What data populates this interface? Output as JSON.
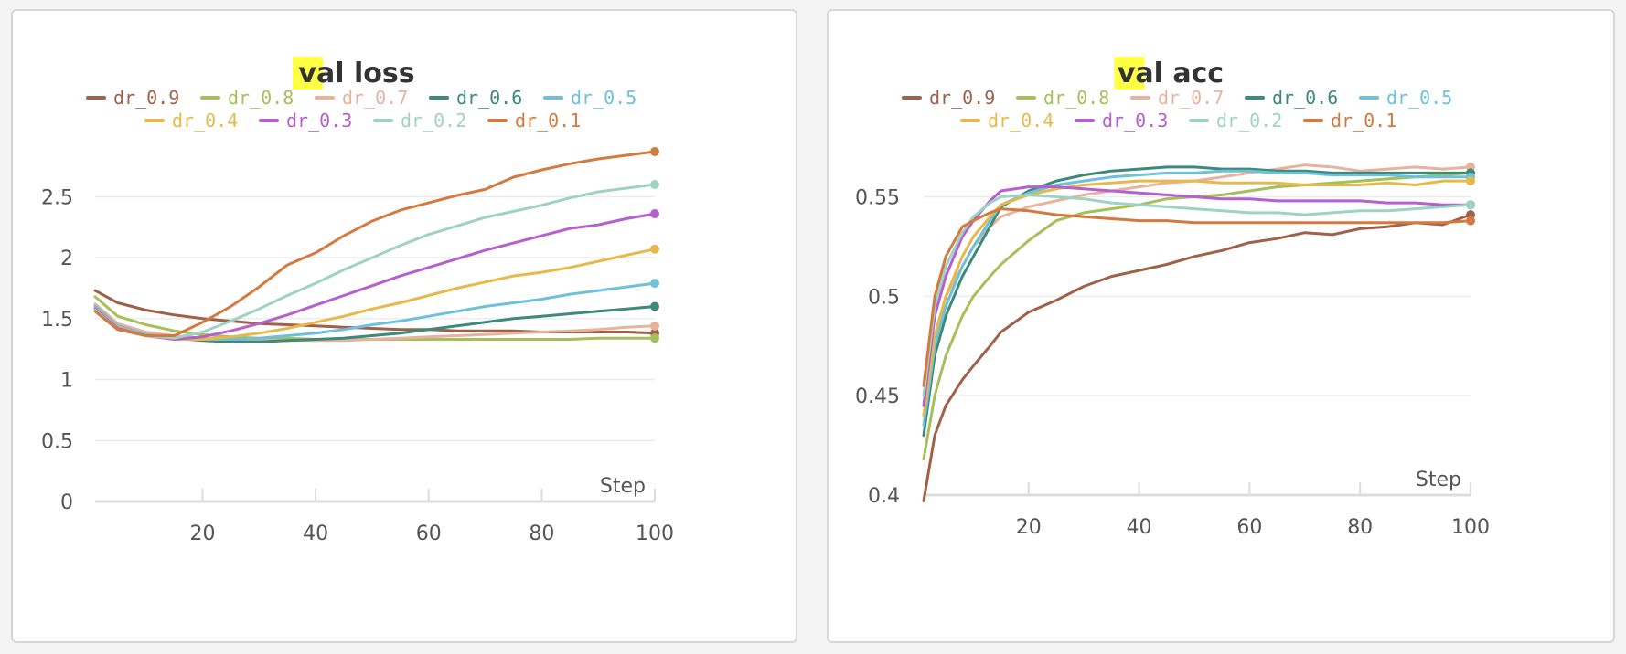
{
  "highlight_color": "#ffff44",
  "chart_data": [
    {
      "type": "line",
      "title_highlight": "va",
      "title_rest": "l loss",
      "xlabel": "Step",
      "ylabel": "",
      "xlim": [
        1,
        100
      ],
      "ylim": [
        0,
        2.9
      ],
      "xticks": [
        20,
        40,
        60,
        80,
        100
      ],
      "yticks": [
        0,
        0.5,
        1,
        1.5,
        2,
        2.5
      ],
      "ytick_labels": [
        "0",
        "0.5",
        "1",
        "1.5",
        "2",
        "2.5"
      ],
      "grid": true,
      "legend_position": "top",
      "x": [
        1,
        5,
        10,
        15,
        20,
        25,
        30,
        35,
        40,
        45,
        50,
        55,
        60,
        65,
        70,
        75,
        80,
        85,
        90,
        95,
        100
      ],
      "series": [
        {
          "name": "dr_0.9",
          "color": "#a0614a",
          "values": [
            1.73,
            1.63,
            1.57,
            1.53,
            1.5,
            1.48,
            1.46,
            1.45,
            1.44,
            1.43,
            1.42,
            1.41,
            1.41,
            1.4,
            1.4,
            1.4,
            1.39,
            1.39,
            1.39,
            1.39,
            1.38
          ]
        },
        {
          "name": "dr_0.8",
          "color": "#a5c05a",
          "values": [
            1.68,
            1.52,
            1.45,
            1.4,
            1.37,
            1.35,
            1.34,
            1.34,
            1.33,
            1.33,
            1.33,
            1.33,
            1.33,
            1.33,
            1.33,
            1.33,
            1.33,
            1.33,
            1.34,
            1.34,
            1.34
          ]
        },
        {
          "name": "dr_0.7",
          "color": "#e8b39e",
          "values": [
            1.62,
            1.46,
            1.39,
            1.36,
            1.34,
            1.33,
            1.32,
            1.32,
            1.32,
            1.32,
            1.33,
            1.34,
            1.35,
            1.36,
            1.37,
            1.38,
            1.39,
            1.4,
            1.41,
            1.43,
            1.44
          ]
        },
        {
          "name": "dr_0.6",
          "color": "#3b8a7a",
          "values": [
            1.6,
            1.44,
            1.37,
            1.34,
            1.32,
            1.31,
            1.31,
            1.32,
            1.33,
            1.34,
            1.36,
            1.38,
            1.41,
            1.44,
            1.47,
            1.5,
            1.52,
            1.54,
            1.56,
            1.58,
            1.6
          ]
        },
        {
          "name": "dr_0.5",
          "color": "#6fc0da",
          "values": [
            1.6,
            1.44,
            1.37,
            1.34,
            1.33,
            1.33,
            1.34,
            1.36,
            1.38,
            1.41,
            1.45,
            1.48,
            1.52,
            1.56,
            1.6,
            1.63,
            1.66,
            1.7,
            1.73,
            1.76,
            1.79
          ]
        },
        {
          "name": "dr_0.4",
          "color": "#e6b94a",
          "values": [
            1.58,
            1.43,
            1.36,
            1.33,
            1.33,
            1.35,
            1.38,
            1.42,
            1.47,
            1.52,
            1.58,
            1.63,
            1.69,
            1.75,
            1.8,
            1.85,
            1.88,
            1.92,
            1.97,
            2.02,
            2.07
          ]
        },
        {
          "name": "dr_0.3",
          "color": "#b65fcf",
          "values": [
            1.58,
            1.42,
            1.36,
            1.33,
            1.35,
            1.4,
            1.46,
            1.53,
            1.61,
            1.69,
            1.77,
            1.85,
            1.92,
            1.99,
            2.06,
            2.12,
            2.18,
            2.24,
            2.27,
            2.32,
            2.36
          ]
        },
        {
          "name": "dr_0.2",
          "color": "#9ed3c2",
          "values": [
            1.57,
            1.41,
            1.36,
            1.34,
            1.39,
            1.48,
            1.58,
            1.69,
            1.79,
            1.9,
            2.0,
            2.1,
            2.19,
            2.26,
            2.33,
            2.38,
            2.43,
            2.49,
            2.54,
            2.57,
            2.6
          ]
        },
        {
          "name": "dr_0.1",
          "color": "#d27a40",
          "values": [
            1.56,
            1.41,
            1.36,
            1.36,
            1.47,
            1.6,
            1.76,
            1.94,
            2.04,
            2.18,
            2.3,
            2.39,
            2.45,
            2.51,
            2.56,
            2.66,
            2.72,
            2.77,
            2.81,
            2.84,
            2.87
          ]
        }
      ]
    },
    {
      "type": "line",
      "title_highlight": "va",
      "title_rest": "l acc",
      "xlabel": "Step",
      "ylabel": "",
      "xlim": [
        1,
        100
      ],
      "ylim": [
        0.4,
        0.57
      ],
      "xticks": [
        20,
        40,
        60,
        80,
        100
      ],
      "yticks": [
        0.4,
        0.45,
        0.5,
        0.55
      ],
      "ytick_labels": [
        "0.4",
        "0.45",
        "0.5",
        "0.55"
      ],
      "grid": true,
      "legend_position": "top",
      "x": [
        1,
        3,
        5,
        8,
        10,
        13,
        15,
        20,
        25,
        30,
        35,
        40,
        45,
        50,
        55,
        60,
        65,
        70,
        75,
        80,
        85,
        90,
        95,
        100
      ],
      "series": [
        {
          "name": "dr_0.9",
          "color": "#a0614a",
          "values": [
            0.397,
            0.43,
            0.445,
            0.458,
            0.465,
            0.475,
            0.482,
            0.492,
            0.498,
            0.505,
            0.51,
            0.513,
            0.516,
            0.52,
            0.523,
            0.527,
            0.529,
            0.532,
            0.531,
            0.534,
            0.535,
            0.537,
            0.536,
            0.541
          ]
        },
        {
          "name": "dr_0.8",
          "color": "#a5c05a",
          "values": [
            0.418,
            0.45,
            0.47,
            0.49,
            0.5,
            0.51,
            0.516,
            0.528,
            0.538,
            0.542,
            0.544,
            0.546,
            0.549,
            0.55,
            0.551,
            0.553,
            0.555,
            0.556,
            0.557,
            0.558,
            0.559,
            0.56,
            0.561,
            0.562
          ]
        },
        {
          "name": "dr_0.7",
          "color": "#e8b39e",
          "values": [
            0.44,
            0.48,
            0.5,
            0.515,
            0.525,
            0.535,
            0.54,
            0.545,
            0.548,
            0.551,
            0.553,
            0.555,
            0.557,
            0.558,
            0.56,
            0.562,
            0.564,
            0.566,
            0.565,
            0.563,
            0.564,
            0.565,
            0.564,
            0.565
          ]
        },
        {
          "name": "dr_0.6",
          "color": "#3b8a7a",
          "values": [
            0.43,
            0.47,
            0.49,
            0.51,
            0.52,
            0.535,
            0.545,
            0.553,
            0.558,
            0.561,
            0.563,
            0.564,
            0.565,
            0.565,
            0.564,
            0.564,
            0.563,
            0.563,
            0.562,
            0.562,
            0.562,
            0.562,
            0.562,
            0.562
          ]
        },
        {
          "name": "dr_0.5",
          "color": "#6fc0da",
          "values": [
            0.435,
            0.475,
            0.495,
            0.515,
            0.525,
            0.538,
            0.546,
            0.552,
            0.556,
            0.558,
            0.56,
            0.561,
            0.562,
            0.562,
            0.563,
            0.563,
            0.562,
            0.562,
            0.561,
            0.561,
            0.561,
            0.56,
            0.56,
            0.56
          ]
        },
        {
          "name": "dr_0.4",
          "color": "#e6b94a",
          "values": [
            0.44,
            0.48,
            0.5,
            0.52,
            0.53,
            0.54,
            0.546,
            0.551,
            0.554,
            0.556,
            0.557,
            0.558,
            0.558,
            0.558,
            0.557,
            0.557,
            0.557,
            0.556,
            0.556,
            0.556,
            0.557,
            0.556,
            0.558,
            0.558
          ]
        },
        {
          "name": "dr_0.3",
          "color": "#b65fcf",
          "values": [
            0.445,
            0.49,
            0.51,
            0.53,
            0.538,
            0.548,
            0.553,
            0.555,
            0.555,
            0.554,
            0.553,
            0.552,
            0.551,
            0.55,
            0.549,
            0.549,
            0.548,
            0.548,
            0.548,
            0.548,
            0.547,
            0.547,
            0.546,
            0.546
          ]
        },
        {
          "name": "dr_0.2",
          "color": "#9ed3c2",
          "values": [
            0.45,
            0.495,
            0.515,
            0.532,
            0.54,
            0.547,
            0.55,
            0.551,
            0.55,
            0.549,
            0.547,
            0.546,
            0.545,
            0.544,
            0.543,
            0.542,
            0.542,
            0.541,
            0.542,
            0.543,
            0.543,
            0.544,
            0.545,
            0.546
          ]
        },
        {
          "name": "dr_0.1",
          "color": "#d27a40",
          "values": [
            0.455,
            0.5,
            0.52,
            0.535,
            0.538,
            0.542,
            0.544,
            0.543,
            0.541,
            0.54,
            0.539,
            0.538,
            0.538,
            0.537,
            0.537,
            0.537,
            0.537,
            0.537,
            0.537,
            0.537,
            0.537,
            0.537,
            0.537,
            0.538
          ]
        }
      ]
    }
  ]
}
